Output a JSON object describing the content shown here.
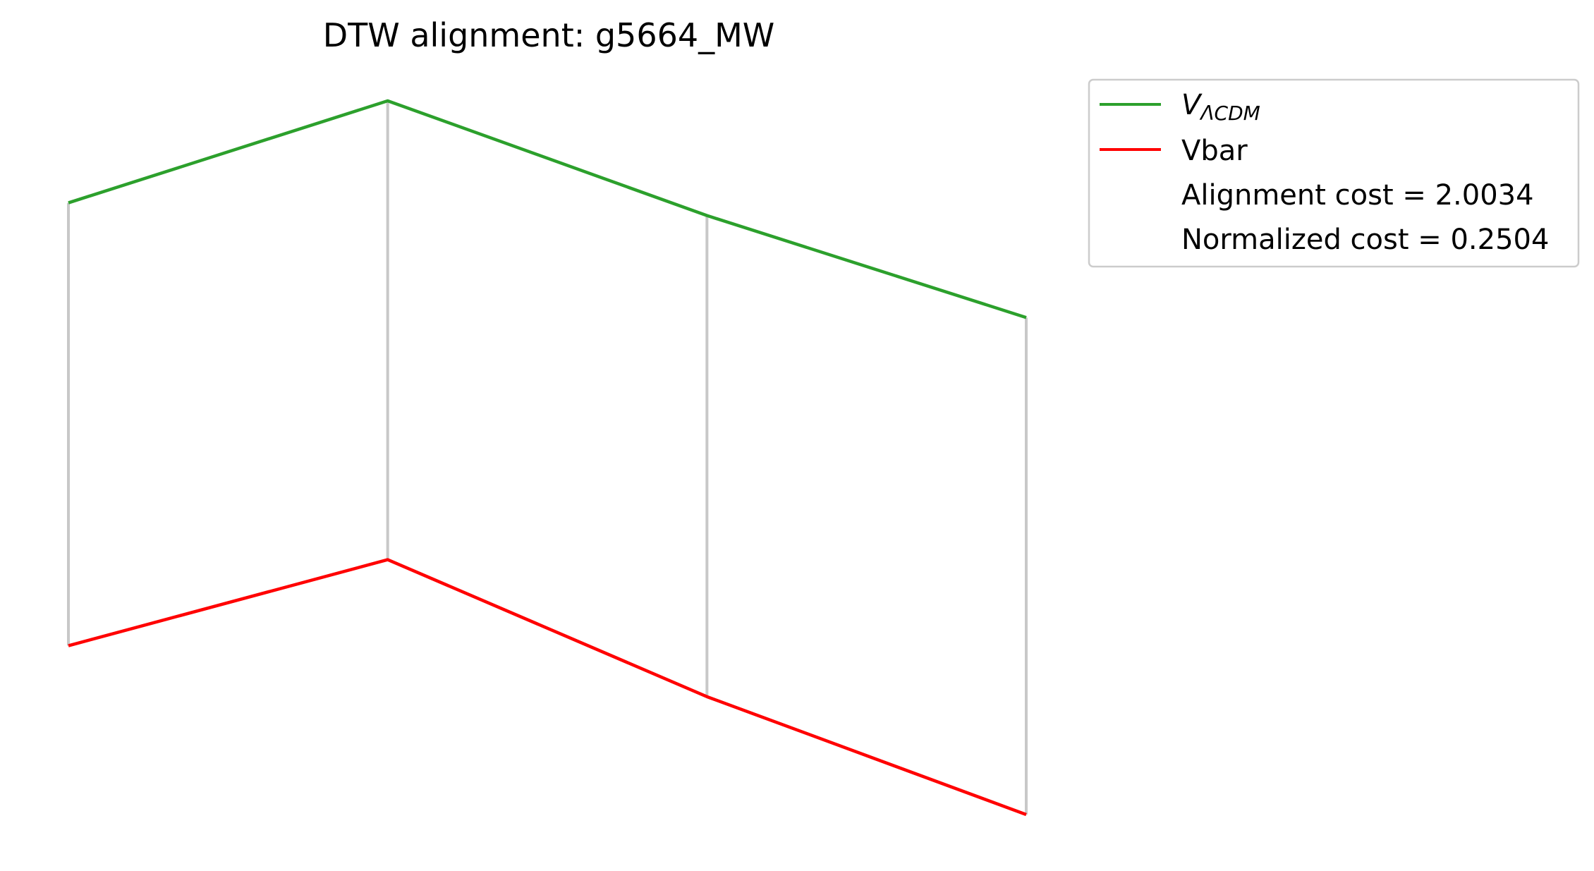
{
  "chart_data": {
    "type": "line",
    "title": "DTW alignment: g5664_MW",
    "xlabel": "",
    "ylabel": "",
    "axes_visible": false,
    "grid": false,
    "legend_position": "outside-top-right",
    "x": [
      0,
      1,
      2,
      3
    ],
    "series": [
      {
        "name": "V_ΛCDM",
        "name_main": "V",
        "name_sub": "ΛCDM",
        "color": "#2ca02c",
        "values": [
          1.0,
          1.32,
          0.96,
          0.64
        ]
      },
      {
        "name": "Vbar",
        "color": "#ff0000",
        "values": [
          -0.39,
          -0.12,
          -0.55,
          -0.92
        ]
      }
    ],
    "alignment_links": {
      "color": "#c8c8c8",
      "pairs": [
        [
          0,
          0
        ],
        [
          1,
          1
        ],
        [
          2,
          2
        ],
        [
          3,
          3
        ]
      ]
    },
    "legend_notes": [
      "Alignment cost = 2.0034",
      "Normalized cost = 0.2504"
    ]
  }
}
